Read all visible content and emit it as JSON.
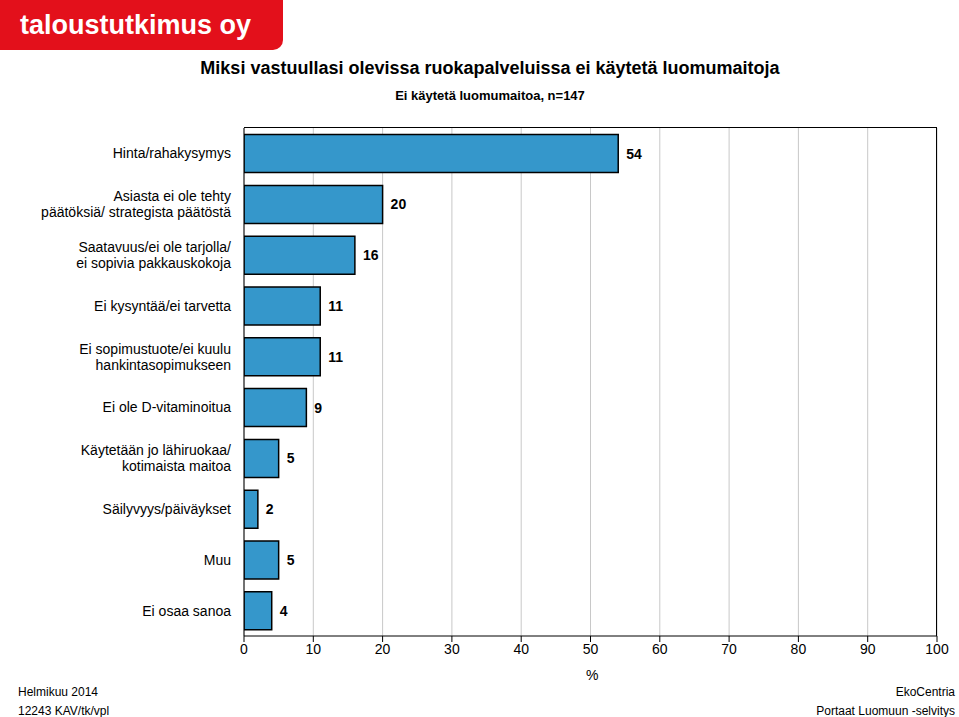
{
  "header": "taloustutkimus oy",
  "footer": {
    "left": [
      "Helmikuu 2014",
      "12243 KAV/tk/vpl"
    ],
    "right": [
      "EkoCentria",
      "Portaat Luomuun -selvitys"
    ]
  },
  "chart_data": {
    "type": "bar",
    "orientation": "horizontal",
    "title": "Miksi vastuullasi olevissa ruokapalveluissa ei käytetä luomumaitoja",
    "subtitle": "Ei käytetä luomumaitoa, n=147",
    "x_label": "%",
    "categories": [
      "Hinta/rahakysymys",
      "Asiasta ei ole tehty\npäätöksiä/ strategista päätöstä",
      "Saatavuus/ei ole tarjolla/\nei sopivia pakkauskokoja",
      "Ei kysyntää/ei tarvetta",
      "Ei sopimustuote/ei kuulu\nhankintasopimukseen",
      "Ei ole D-vitaminoitua",
      "Käytetään jo lähiruokaa/\nkotimaista maitoa",
      "Säilyvyys/päiväykset",
      "Muu",
      "Ei osaa sanoa"
    ],
    "values": [
      54,
      20,
      16,
      11,
      11,
      9,
      5,
      2,
      5,
      4
    ],
    "color": "#3597cb",
    "xlim": [
      0,
      100
    ],
    "xticks": [
      0,
      10,
      20,
      30,
      40,
      50,
      60,
      70,
      80,
      90,
      100
    ],
    "grid": true,
    "data_labels": true
  }
}
